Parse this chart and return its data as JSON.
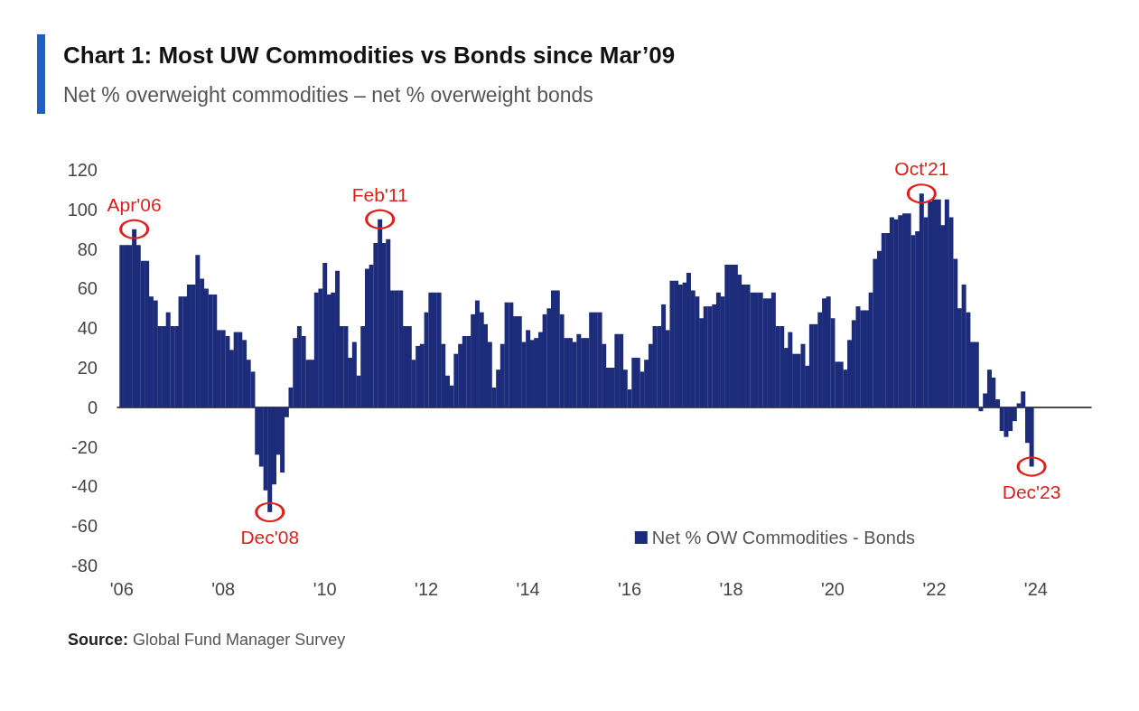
{
  "chart_data": {
    "type": "bar",
    "title": "Chart 1: Most UW Commodities vs Bonds since Mar’09",
    "subtitle": "Net % overweight commodities – net % overweight bonds",
    "x": [
      "2006-01",
      "2006-02",
      "2006-03",
      "2006-04",
      "2006-05",
      "2006-06",
      "2006-07",
      "2006-08",
      "2006-09",
      "2006-10",
      "2006-11",
      "2006-12",
      "2007-01",
      "2007-02",
      "2007-03",
      "2007-04",
      "2007-05",
      "2007-06",
      "2007-07",
      "2007-08",
      "2007-09",
      "2007-10",
      "2007-11",
      "2007-12",
      "2008-01",
      "2008-02",
      "2008-03",
      "2008-04",
      "2008-05",
      "2008-06",
      "2008-07",
      "2008-08",
      "2008-09",
      "2008-10",
      "2008-11",
      "2008-12",
      "2009-01",
      "2009-02",
      "2009-03",
      "2009-04",
      "2009-05",
      "2009-06",
      "2009-07",
      "2009-08",
      "2009-09",
      "2009-10",
      "2009-11",
      "2009-12",
      "2010-01",
      "2010-02",
      "2010-03",
      "2010-04",
      "2010-05",
      "2010-06",
      "2010-07",
      "2010-08",
      "2010-09",
      "2010-10",
      "2010-11",
      "2010-12",
      "2011-01",
      "2011-02",
      "2011-03",
      "2011-04",
      "2011-05",
      "2011-06",
      "2011-07",
      "2011-08",
      "2011-09",
      "2011-10",
      "2011-11",
      "2011-12",
      "2012-01",
      "2012-02",
      "2012-03",
      "2012-04",
      "2012-05",
      "2012-06",
      "2012-07",
      "2012-08",
      "2012-09",
      "2012-10",
      "2012-11",
      "2012-12",
      "2013-01",
      "2013-02",
      "2013-03",
      "2013-04",
      "2013-05",
      "2013-06",
      "2013-07",
      "2013-08",
      "2013-09",
      "2013-10",
      "2013-11",
      "2013-12",
      "2014-01",
      "2014-02",
      "2014-03",
      "2014-04",
      "2014-05",
      "2014-06",
      "2014-07",
      "2014-08",
      "2014-09",
      "2014-10",
      "2014-11",
      "2014-12",
      "2015-01",
      "2015-02",
      "2015-03",
      "2015-04",
      "2015-05",
      "2015-06",
      "2015-07",
      "2015-08",
      "2015-09",
      "2015-10",
      "2015-11",
      "2015-12",
      "2016-01",
      "2016-02",
      "2016-03",
      "2016-04",
      "2016-05",
      "2016-06",
      "2016-07",
      "2016-08",
      "2016-09",
      "2016-10",
      "2016-11",
      "2016-12",
      "2017-01",
      "2017-02",
      "2017-03",
      "2017-04",
      "2017-05",
      "2017-06",
      "2017-07",
      "2017-08",
      "2017-09",
      "2017-10",
      "2017-11",
      "2017-12",
      "2018-01",
      "2018-02",
      "2018-03",
      "2018-04",
      "2018-05",
      "2018-06",
      "2018-07",
      "2018-08",
      "2018-09",
      "2018-10",
      "2018-11",
      "2018-12",
      "2019-01",
      "2019-02",
      "2019-03",
      "2019-04",
      "2019-05",
      "2019-06",
      "2019-07",
      "2019-08",
      "2019-09",
      "2019-10",
      "2019-11",
      "2019-12",
      "2020-01",
      "2020-02",
      "2020-03",
      "2020-04",
      "2020-05",
      "2020-06",
      "2020-07",
      "2020-08",
      "2020-09",
      "2020-10",
      "2020-11",
      "2020-12",
      "2021-01",
      "2021-02",
      "2021-03",
      "2021-04",
      "2021-05",
      "2021-06",
      "2021-07",
      "2021-08",
      "2021-09",
      "2021-10",
      "2021-11",
      "2021-12",
      "2022-01",
      "2022-02",
      "2022-03",
      "2022-04",
      "2022-05",
      "2022-06",
      "2022-07",
      "2022-08",
      "2022-09",
      "2022-10",
      "2022-11",
      "2022-12",
      "2023-01",
      "2023-02",
      "2023-03",
      "2023-04",
      "2023-05",
      "2023-06",
      "2023-07",
      "2023-08",
      "2023-09",
      "2023-10",
      "2023-11",
      "2023-12"
    ],
    "series": [
      {
        "name": "Net % OW Commodities - Bonds",
        "color": "#1c2b7a",
        "values": [
          82,
          82,
          82,
          90,
          82,
          74,
          74,
          56,
          54,
          41,
          41,
          48,
          41,
          41,
          56,
          56,
          62,
          62,
          77,
          65,
          60,
          57,
          57,
          39,
          39,
          36,
          29,
          38,
          38,
          34,
          24,
          18,
          -24,
          -30,
          -42,
          -53,
          -39,
          -24,
          -33,
          -5,
          10,
          35,
          41,
          36,
          24,
          24,
          58,
          60,
          73,
          57,
          58,
          69,
          41,
          41,
          25,
          33,
          16,
          41,
          70,
          72,
          83,
          95,
          83,
          85,
          59,
          59,
          59,
          41,
          41,
          24,
          31,
          32,
          48,
          58,
          58,
          58,
          32,
          16,
          11,
          27,
          32,
          36,
          36,
          47,
          54,
          48,
          42,
          33,
          10,
          19,
          32,
          53,
          53,
          46,
          46,
          33,
          39,
          34,
          35,
          38,
          47,
          50,
          59,
          59,
          47,
          35,
          35,
          33,
          37,
          35,
          35,
          48,
          48,
          48,
          32,
          20,
          20,
          37,
          37,
          19,
          9,
          25,
          25,
          18,
          24,
          32,
          41,
          41,
          52,
          39,
          64,
          64,
          62,
          63,
          68,
          59,
          56,
          45,
          51,
          51,
          52,
          58,
          56,
          72,
          72,
          72,
          67,
          62,
          62,
          58,
          58,
          58,
          55,
          55,
          58,
          41,
          41,
          30,
          38,
          27,
          27,
          32,
          21,
          42,
          42,
          48,
          55,
          56,
          45,
          23,
          23,
          19,
          34,
          44,
          51,
          49,
          49,
          58,
          75,
          79,
          88,
          88,
          96,
          95,
          97,
          98,
          98,
          87,
          89,
          108,
          96,
          104,
          105,
          105,
          92,
          105,
          96,
          75,
          50,
          62,
          48,
          33,
          33,
          -2,
          7,
          19,
          15,
          4,
          -12,
          -15,
          -12,
          -7,
          2,
          8,
          -18,
          -30
        ]
      }
    ],
    "xlim": [
      "2005-12",
      "2025-02"
    ],
    "xticks": [
      {
        "value": "2006-01",
        "label": "'06"
      },
      {
        "value": "2008-01",
        "label": "'08"
      },
      {
        "value": "2010-01",
        "label": "'10"
      },
      {
        "value": "2012-01",
        "label": "'12"
      },
      {
        "value": "2014-01",
        "label": "'14"
      },
      {
        "value": "2016-01",
        "label": "'16"
      },
      {
        "value": "2018-01",
        "label": "'18"
      },
      {
        "value": "2020-01",
        "label": "'20"
      },
      {
        "value": "2022-01",
        "label": "'22"
      },
      {
        "value": "2024-01",
        "label": "'24"
      }
    ],
    "ylim": [
      -80,
      120
    ],
    "yticks": [
      -80,
      -60,
      -40,
      -20,
      0,
      20,
      40,
      60,
      80,
      100,
      120
    ],
    "legend": "bottom right",
    "annotations": [
      {
        "text": "Apr'06",
        "x": "2006-04",
        "y": 90
      },
      {
        "text": "Dec'08",
        "x": "2008-12",
        "y": -53
      },
      {
        "text": "Feb'11",
        "x": "2011-02",
        "y": 95
      },
      {
        "text": "Oct'21",
        "x": "2021-10",
        "y": 108
      },
      {
        "text": "Dec'23",
        "x": "2023-12",
        "y": -30
      },
      "Source: Global Fund Manager Survey"
    ]
  }
}
